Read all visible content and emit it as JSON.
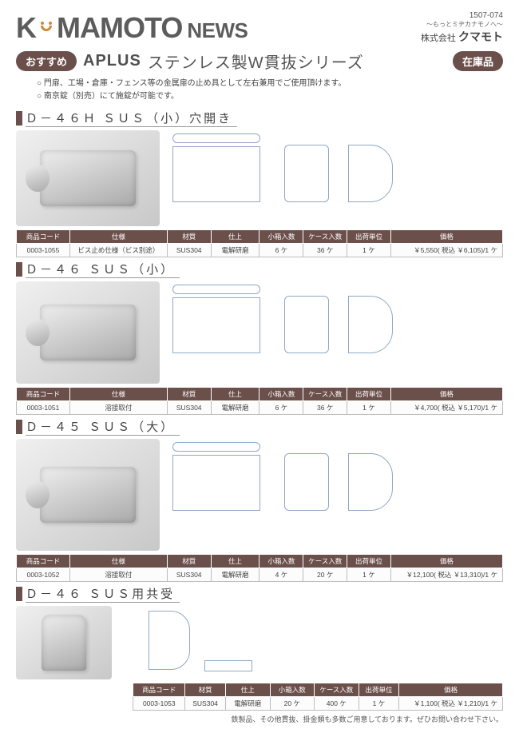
{
  "doc_number": "1507-074",
  "tagline": "～もっとミヂカナモノへ～",
  "company_prefix": "株式会社",
  "company_name": "クマモト",
  "logo": {
    "k": "K",
    "rest": "MAMOTO",
    "news": "NEWS"
  },
  "badge_left": "おすすめ",
  "badge_right": "在庫品",
  "aplus": "APLUS",
  "series_title": "ステンレス製W貫抜シリーズ",
  "bullets": [
    "門扉、工場・倉庫・フェンス等の金属扉の止め具として左右兼用でご使用頂けます。",
    "南京錠（別売）にて施錠が可能です。"
  ],
  "columns_full": [
    "商品コード",
    "仕様",
    "材質",
    "仕上",
    "小箱入数",
    "ケース入数",
    "出荷単位",
    "価格"
  ],
  "columns_short": [
    "商品コード",
    "材質",
    "仕上",
    "小箱入数",
    "ケース入数",
    "出荷単位",
    "価格"
  ],
  "sections": [
    {
      "title": "Ｄ－４６Ｈ ＳＵＳ（小）穴開き",
      "photo_h": 120,
      "table": "full",
      "row": {
        "code": "0003-1055",
        "spec": "ビス止め仕様（ビス別途）",
        "material": "SUS304",
        "finish": "電解研磨",
        "small_box": "6 ケ",
        "case": "36 ケ",
        "unit": "1 ケ",
        "price": "￥5,550( 税込 ￥6,105)/1 ケ"
      }
    },
    {
      "title": "Ｄ－４６ ＳＵＳ（小）",
      "photo_h": 128,
      "table": "full",
      "row": {
        "code": "0003-1051",
        "spec": "溶接取付",
        "material": "SUS304",
        "finish": "電解研磨",
        "small_box": "6 ケ",
        "case": "36 ケ",
        "unit": "1 ケ",
        "price": "￥4,700( 税込 ￥5,170)/1 ケ"
      }
    },
    {
      "title": "Ｄ－４５ ＳＵＳ（大）",
      "photo_h": 140,
      "table": "full",
      "row": {
        "code": "0003-1052",
        "spec": "溶接取付",
        "material": "SUS304",
        "finish": "電解研磨",
        "small_box": "4 ケ",
        "case": "20 ケ",
        "unit": "1 ケ",
        "price": "￥12,100( 税込 ￥13,310)/1 ケ"
      }
    },
    {
      "title": "Ｄ－４６ ＳＵＳ用共受",
      "photo_h": 92,
      "table": "short",
      "row": {
        "code": "0003-1053",
        "material": "SUS304",
        "finish": "電解研磨",
        "small_box": "20 ケ",
        "case": "400 ケ",
        "unit": "1 ケ",
        "price": "￥1,100( 税込 ￥1,210)/1 ケ"
      }
    }
  ],
  "footnote": "鉄製品、その他貫抜、掛金類も多数ご用意しております。ぜひお問い合わせ下さい。",
  "colors": {
    "accent": "#6b4f4a",
    "drawing_line": "#8fa8c4",
    "text": "#444444"
  }
}
